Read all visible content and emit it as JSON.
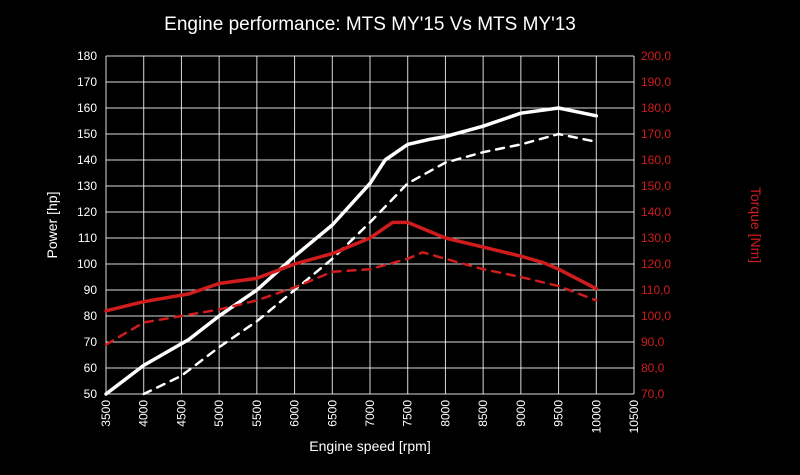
{
  "chart_data": {
    "type": "line",
    "title": "Engine performance: MTS MY'15 Vs MTS MY'13",
    "xlabel": "Engine speed [rpm]",
    "ylabel_left": "Power [hp]",
    "ylabel_right": "Torque [Nm]",
    "xlim": [
      3500,
      10500
    ],
    "ylim_left": [
      50,
      180
    ],
    "ylim_right": [
      70,
      200
    ],
    "x_ticks": [
      "3500",
      "4000",
      "4500",
      "5000",
      "5500",
      "6000",
      "6500",
      "7000",
      "7500",
      "8000",
      "8500",
      "9000",
      "9500",
      "10000",
      "10500"
    ],
    "y_ticks_left": [
      "50",
      "60",
      "70",
      "80",
      "90",
      "100",
      "110",
      "120",
      "130",
      "140",
      "150",
      "160",
      "170",
      "180"
    ],
    "y_ticks_right": [
      "70,0",
      "80,0",
      "90,0",
      "100,0",
      "110,0",
      "120,0",
      "130,0",
      "140,0",
      "150,0",
      "160,0",
      "170,0",
      "180,0",
      "190,0",
      "200,0"
    ],
    "grid": true,
    "colors": {
      "power": "#ffffff",
      "torque": "#d01c1c",
      "background": "#000000"
    },
    "series": [
      {
        "axis": "left",
        "color": "#ffffff",
        "style": "solid",
        "x": [
          3500,
          4000,
          4600,
          5000,
          5500,
          6000,
          6500,
          7000,
          7200,
          7500,
          7800,
          8000,
          8500,
          9000,
          9500,
          10000
        ],
        "y": [
          50,
          61,
          71,
          80,
          90,
          103,
          115,
          131,
          140,
          146,
          148,
          149,
          153,
          158,
          160,
          157
        ]
      },
      {
        "axis": "left",
        "color": "#ffffff",
        "style": "dashed",
        "x": [
          4000,
          4500,
          5000,
          5500,
          6000,
          6500,
          7000,
          7500,
          8000,
          8500,
          9000,
          9500,
          10000
        ],
        "y": [
          50,
          57,
          68,
          78,
          90,
          102,
          116,
          131,
          139,
          143,
          146,
          150,
          147
        ]
      },
      {
        "axis": "right",
        "color": "#d01c1c",
        "style": "solid",
        "x": [
          3500,
          4000,
          4600,
          5000,
          5500,
          6000,
          6500,
          7000,
          7300,
          7500,
          8000,
          8500,
          9000,
          9300,
          9500,
          10000
        ],
        "y": [
          102,
          105.5,
          108.5,
          112.5,
          114.5,
          120,
          124,
          130,
          136,
          136,
          130,
          126.5,
          123,
          120.5,
          118,
          110.5
        ]
      },
      {
        "axis": "right",
        "color": "#d01c1c",
        "style": "dashed",
        "x": [
          3500,
          4000,
          4500,
          5000,
          5500,
          6000,
          6500,
          7000,
          7500,
          7700,
          8000,
          8500,
          9000,
          9500,
          10000
        ],
        "y": [
          89,
          97.5,
          100,
          102.5,
          106,
          111,
          117,
          118,
          122,
          124.5,
          122,
          118,
          115,
          111.5,
          106
        ]
      }
    ]
  }
}
